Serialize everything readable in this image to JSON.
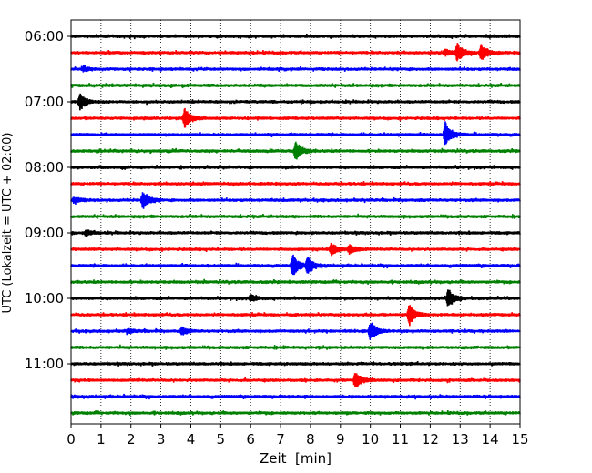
{
  "chart_data": {
    "type": "line",
    "xlabel": "Zeit  [min]",
    "ylabel": "UTC (Lokalzeit = UTC + 02:00)",
    "xlim": [
      0,
      15
    ],
    "x_ticks": [
      "0",
      "1",
      "2",
      "3",
      "4",
      "5",
      "6",
      "7",
      "8",
      "9",
      "10",
      "11",
      "12",
      "13",
      "14",
      "15"
    ],
    "y_tick_labels": [
      "06:00",
      "07:00",
      "08:00",
      "09:00",
      "10:00",
      "11:00"
    ],
    "y_tick_rows": [
      0,
      4,
      8,
      12,
      16,
      20
    ],
    "grid": "vertical dotted",
    "trace_colors": [
      "#000000",
      "#ff0000",
      "#0000ff",
      "#008000"
    ],
    "traces": [
      {
        "start": "06:00",
        "events": []
      },
      {
        "start": "06:15",
        "events": [
          {
            "t": 12.9,
            "amp": 0.9
          },
          {
            "t": 13.7,
            "amp": 0.8
          },
          {
            "t": 12.5,
            "amp": 0.3
          }
        ]
      },
      {
        "start": "06:30",
        "events": [
          {
            "t": 0.4,
            "amp": 0.25
          }
        ]
      },
      {
        "start": "06:45",
        "events": []
      },
      {
        "start": "07:00",
        "events": [
          {
            "t": 0.3,
            "amp": 0.8
          }
        ]
      },
      {
        "start": "07:15",
        "events": [
          {
            "t": 3.8,
            "amp": 1.0
          }
        ]
      },
      {
        "start": "07:30",
        "events": [
          {
            "t": 12.5,
            "amp": 1.2
          }
        ]
      },
      {
        "start": "07:45",
        "events": [
          {
            "t": 7.5,
            "amp": 0.9
          }
        ]
      },
      {
        "start": "08:00",
        "events": []
      },
      {
        "start": "08:15",
        "events": []
      },
      {
        "start": "08:30",
        "events": [
          {
            "t": 2.4,
            "amp": 0.9
          },
          {
            "t": 0.1,
            "amp": 0.3
          }
        ]
      },
      {
        "start": "08:45",
        "events": []
      },
      {
        "start": "09:00",
        "events": [
          {
            "t": 0.5,
            "amp": 0.3
          }
        ]
      },
      {
        "start": "09:15",
        "events": [
          {
            "t": 8.7,
            "amp": 0.6
          },
          {
            "t": 9.3,
            "amp": 0.45
          }
        ]
      },
      {
        "start": "09:30",
        "events": [
          {
            "t": 7.4,
            "amp": 1.1
          },
          {
            "t": 7.9,
            "amp": 0.8
          }
        ]
      },
      {
        "start": "09:45",
        "events": []
      },
      {
        "start": "10:00",
        "events": [
          {
            "t": 12.6,
            "amp": 0.9
          },
          {
            "t": 6.0,
            "amp": 0.3
          }
        ]
      },
      {
        "start": "10:15",
        "events": [
          {
            "t": 11.3,
            "amp": 1.1
          }
        ]
      },
      {
        "start": "10:30",
        "events": [
          {
            "t": 10.0,
            "amp": 1.0
          },
          {
            "t": 3.7,
            "amp": 0.35
          },
          {
            "t": 1.9,
            "amp": 0.2
          }
        ]
      },
      {
        "start": "10:45",
        "events": []
      },
      {
        "start": "11:00",
        "events": []
      },
      {
        "start": "11:15",
        "events": [
          {
            "t": 9.5,
            "amp": 0.8
          }
        ]
      },
      {
        "start": "11:30",
        "events": []
      },
      {
        "start": "11:45",
        "events": []
      }
    ]
  }
}
